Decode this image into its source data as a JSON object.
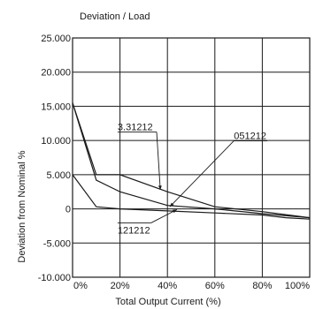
{
  "chart_data": {
    "type": "line",
    "title": "Deviation / Load",
    "xlabel": "Total Output Current (%)",
    "ylabel": "Deviation from Nominal %",
    "xlim": [
      0,
      100
    ],
    "ylim": [
      -10,
      25
    ],
    "x_ticks": [
      0,
      20,
      40,
      60,
      80,
      100
    ],
    "x_tick_labels": [
      "0%",
      "20%",
      "40%",
      "60%",
      "80%",
      "100%"
    ],
    "y_ticks": [
      -10,
      -5,
      0,
      5,
      10,
      15,
      20,
      25
    ],
    "y_tick_labels": [
      "-10.000",
      "-5.000",
      "0",
      "5.000",
      "10.000",
      "15.000",
      "20.000",
      "25.000"
    ],
    "grid": true,
    "series": [
      {
        "name": "3.31212",
        "x": [
          0,
          10,
          20,
          40,
          60,
          80,
          100
        ],
        "y": [
          15.5,
          5.0,
          5.0,
          2.5,
          0.3,
          -0.4,
          -1.3
        ]
      },
      {
        "name": "051212",
        "x": [
          0,
          10,
          20,
          40,
          60,
          80,
          100
        ],
        "y": [
          15.5,
          4.2,
          2.5,
          0.5,
          0.0,
          -0.7,
          -1.3
        ]
      },
      {
        "name": "121212",
        "x": [
          0,
          10,
          20,
          40,
          60,
          80,
          90,
          100
        ],
        "y": [
          5.0,
          0.3,
          0.0,
          -0.3,
          -0.6,
          -0.9,
          -1.3,
          -1.5
        ]
      }
    ],
    "annotations": [
      {
        "text": "3.31212",
        "series": 0,
        "label_x": 19,
        "label_y": 11.5,
        "tip_x": 37,
        "tip_y": 2.8
      },
      {
        "text": "051212",
        "series": 1,
        "label_x": 68,
        "label_y": 10.2,
        "tip_x": 41,
        "tip_y": 0.3
      },
      {
        "text": "121212",
        "series": 2,
        "label_x": 19,
        "label_y": -3.6,
        "tip_x": 44,
        "tip_y": -0.1
      }
    ]
  }
}
